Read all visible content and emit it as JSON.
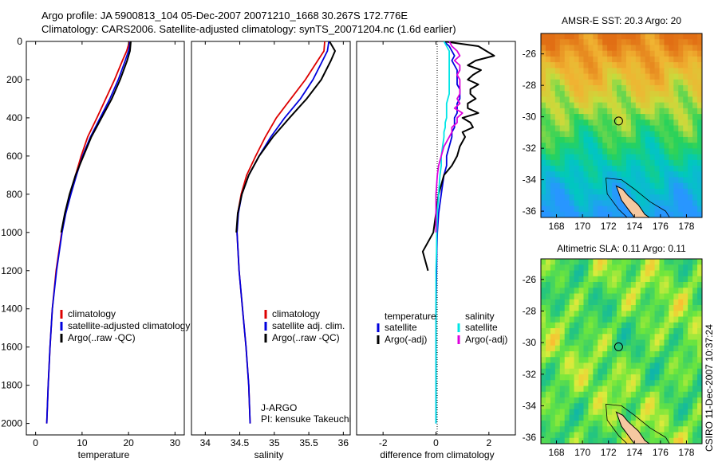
{
  "figure": {
    "title_line1": "Argo profile: JA 5900813_104 05-Dec-2007 20071210_1668 30.267S 172.776E",
    "title_line2": "Climatology: CARS2006. Satellite-adjusted climatology: synTS_20071204.nc (1.6d earlier)",
    "footer_vertical": "CSIRO 11-Dec-2007 10:37:24"
  },
  "colors": {
    "climatology": "#dd0000",
    "satellite": "#0000dd",
    "argo": "#000000",
    "salinity_satellite": "#00e6e6",
    "salinity_argo": "#dd00dd",
    "float_marker": "#000000",
    "land": "#f5c8a0"
  },
  "chart_data": [
    {
      "id": "temperature",
      "type": "line",
      "title": "",
      "xlabel": "temperature",
      "ylabel": "",
      "xlim": [
        -2,
        32
      ],
      "ylim": [
        2060,
        0
      ],
      "xticks": [
        "0",
        "10",
        "20",
        "30"
      ],
      "yticks": [
        "0",
        "200",
        "400",
        "600",
        "800",
        "1000",
        "1200",
        "1400",
        "1600",
        "1800",
        "2000"
      ],
      "legend": [
        "climatology",
        "satellite-adjusted climatology",
        "Argo(..raw -QC)"
      ],
      "legend_placement": "lower-right",
      "depth": [
        0,
        50,
        100,
        200,
        300,
        400,
        500,
        600,
        700,
        800,
        900,
        1000,
        1200,
        1400,
        1600,
        1800,
        2000
      ],
      "series": [
        {
          "name": "climatology",
          "key": "climatology",
          "values": [
            20.2,
            19.6,
            18.7,
            17.0,
            15.1,
            13.2,
            11.2,
            9.8,
            8.6,
            7.4,
            6.4,
            5.6,
            4.4,
            3.6,
            3.1,
            2.7,
            2.4
          ]
        },
        {
          "name": "satellite-adjusted climatology",
          "key": "satellite",
          "values": [
            20.4,
            20.0,
            19.3,
            17.8,
            16.0,
            13.9,
            11.8,
            10.1,
            8.8,
            7.6,
            6.5,
            5.7,
            4.5,
            3.6,
            3.1,
            2.7,
            2.4
          ]
        },
        {
          "name": "Argo(..raw -QC)",
          "key": "argo",
          "values": [
            20.5,
            20.3,
            19.7,
            18.2,
            16.4,
            14.2,
            12.0,
            10.3,
            8.6,
            7.3,
            6.3,
            5.5,
            null,
            null,
            null,
            null,
            null
          ]
        }
      ]
    },
    {
      "id": "salinity",
      "type": "line",
      "title": "",
      "xlabel": "salinity",
      "ylabel": "",
      "xlim": [
        33.8,
        36.1
      ],
      "ylim": [
        2060,
        0
      ],
      "xticks": [
        "34",
        "34.5",
        "35",
        "35.5",
        "36"
      ],
      "legend": [
        "climatology",
        "satellite adj. clim.",
        "Argo(..raw -QC)"
      ],
      "legend_placement": "lower-right",
      "annotation": [
        "J-ARGO",
        "PI: kensuke Takeuchi"
      ],
      "depth": [
        0,
        50,
        100,
        200,
        300,
        400,
        500,
        600,
        700,
        800,
        900,
        1000,
        1200,
        1400,
        1600,
        1800,
        2000
      ],
      "series": [
        {
          "name": "climatology",
          "key": "climatology",
          "values": [
            35.73,
            35.72,
            35.63,
            35.45,
            35.24,
            35.03,
            34.87,
            34.73,
            34.6,
            34.52,
            34.47,
            34.46,
            34.49,
            34.54,
            34.59,
            34.63,
            34.65
          ]
        },
        {
          "name": "satellite adj. clim.",
          "key": "satellite",
          "values": [
            35.79,
            35.77,
            35.7,
            35.56,
            35.38,
            35.15,
            34.95,
            34.78,
            34.63,
            34.53,
            34.48,
            34.46,
            34.49,
            34.54,
            34.59,
            34.63,
            34.65
          ]
        },
        {
          "name": "Argo(..raw -QC)",
          "key": "argo",
          "values": [
            35.8,
            35.88,
            35.82,
            35.68,
            35.47,
            35.22,
            34.98,
            34.78,
            34.63,
            34.53,
            34.47,
            34.45,
            null,
            null,
            null,
            null,
            null
          ]
        }
      ]
    },
    {
      "id": "difference",
      "type": "line",
      "title": "",
      "xlabel": "difference from climatology",
      "ylabel": "",
      "xlim": [
        -3,
        3
      ],
      "ylim": [
        2060,
        0
      ],
      "xticks": [
        "-2",
        "0",
        "2"
      ],
      "legend_groups": [
        {
          "title": "temperature",
          "entries": [
            "satellite",
            "Argo(-adj)"
          ]
        },
        {
          "title": "salinity",
          "entries": [
            "satellite",
            "Argo(-adj)"
          ]
        }
      ],
      "legend_placement": "lower-center",
      "depth": [
        0,
        25,
        50,
        75,
        100,
        125,
        150,
        175,
        200,
        225,
        250,
        275,
        300,
        325,
        350,
        375,
        400,
        425,
        450,
        475,
        500,
        550,
        600,
        650,
        700,
        800,
        900,
        1000,
        1100,
        1200,
        1400,
        1600,
        1800,
        2000
      ],
      "series": [
        {
          "name": "temperature satellite",
          "key": "satellite",
          "values": [
            0.3,
            0.5,
            0.6,
            0.7,
            0.6,
            0.7,
            0.8,
            0.8,
            0.8,
            0.8,
            0.9,
            0.9,
            0.9,
            0.8,
            0.8,
            0.8,
            0.7,
            0.7,
            0.7,
            0.6,
            0.6,
            0.5,
            0.4,
            0.4,
            0.3,
            0.2,
            0.1,
            0.05,
            0.03,
            0.02,
            0.0,
            0.0,
            0.0,
            0.0
          ]
        },
        {
          "name": "temperature Argo(-adj)",
          "key": "argo",
          "values": [
            0.3,
            1.6,
            1.9,
            2.2,
            1.5,
            1.2,
            1.7,
            1.4,
            1.2,
            1.6,
            1.3,
            1.3,
            1.5,
            1.2,
            1.2,
            1.6,
            1.0,
            1.3,
            1.4,
            1.0,
            1.1,
            0.9,
            0.8,
            0.6,
            0.3,
            0.1,
            0.0,
            -0.1,
            -0.5,
            -0.3,
            null,
            null,
            null,
            null
          ]
        },
        {
          "name": "salinity satellite",
          "key": "salinity_satellite",
          "values": [
            0.3,
            0.4,
            0.5,
            0.5,
            0.5,
            0.5,
            0.5,
            0.5,
            0.5,
            0.5,
            0.5,
            0.5,
            0.45,
            0.4,
            0.4,
            0.4,
            0.4,
            0.35,
            0.35,
            0.3,
            0.3,
            0.25,
            0.2,
            0.2,
            0.15,
            0.1,
            0.05,
            0.03,
            0.02,
            0.0,
            0.0,
            0.0,
            0.0,
            0.0
          ]
        },
        {
          "name": "salinity Argo(-adj)",
          "key": "salinity_argo",
          "values": [
            0.5,
            0.6,
            0.8,
            0.9,
            0.7,
            0.9,
            0.9,
            0.8,
            0.9,
            0.9,
            0.9,
            0.9,
            0.8,
            0.9,
            0.7,
            1.0,
            0.8,
            0.8,
            0.6,
            0.6,
            0.5,
            0.3,
            0.2,
            0.1,
            0.05,
            0.0,
            0.0,
            0.0,
            null,
            null,
            null,
            null,
            null,
            null
          ]
        }
      ]
    },
    {
      "id": "sst_map",
      "type": "heatmap",
      "title": "AMSR-E SST: 20.3 Argo: 20",
      "xlim": [
        166.8,
        179.2
      ],
      "ylim": [
        -36.4,
        -24.7
      ],
      "xticks": [
        "168",
        "170",
        "172",
        "174",
        "176",
        "178"
      ],
      "yticks": [
        "-26",
        "-28",
        "-30",
        "-32",
        "-34",
        "-36"
      ],
      "float_position": {
        "lon": 172.776,
        "lat": -30.267
      }
    },
    {
      "id": "sla_map",
      "type": "heatmap",
      "title": "Altimetric SLA: 0.11 Argo: 0.11",
      "xlim": [
        166.8,
        179.2
      ],
      "ylim": [
        -36.4,
        -24.7
      ],
      "xticks": [
        "168",
        "170",
        "172",
        "174",
        "176",
        "178"
      ],
      "yticks": [
        "-26",
        "-28",
        "-30",
        "-32",
        "-34",
        "-36"
      ],
      "float_position": {
        "lon": 172.776,
        "lat": -30.267
      }
    }
  ]
}
